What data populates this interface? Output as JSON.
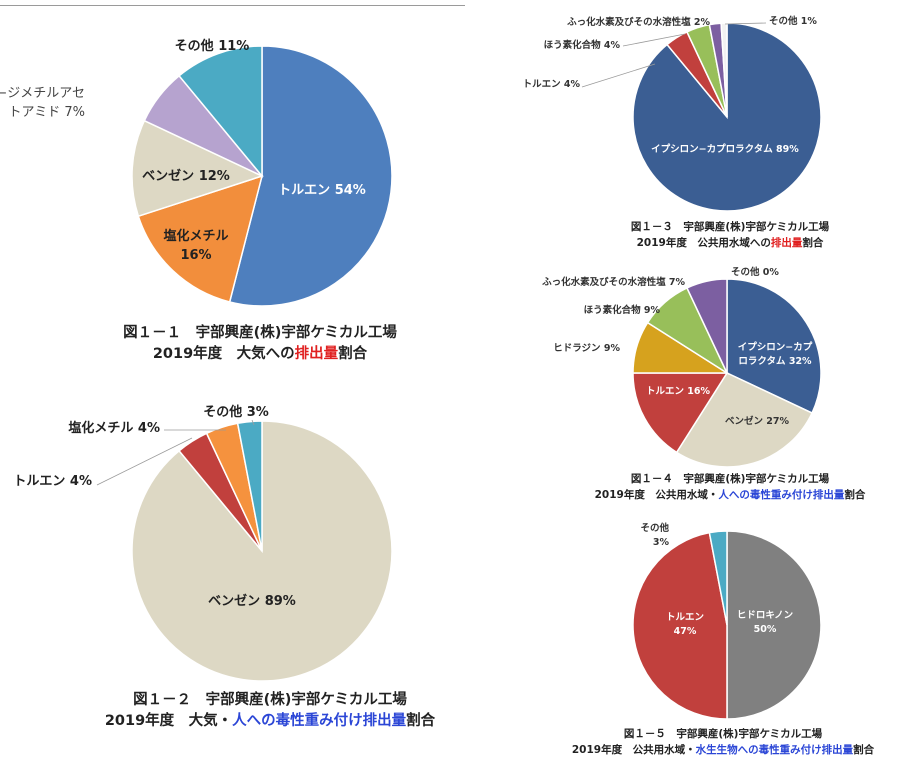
{
  "colors": {
    "toluene": "#4e7fbe",
    "methylene_chloride": "#f28e3c",
    "benzene": "#ddd8c4",
    "dmac": "#b6a3cf",
    "others": "#4baac4",
    "red": "#c1403d",
    "orange": "#f5923e",
    "teal": "#4baac4",
    "navy": "#3b5e93",
    "green": "#98bf5a",
    "purple": "#7c5fa1",
    "gold": "#d6a21e",
    "gray": "#808080",
    "white_slice": "#f2f2f2",
    "highlight_red": "#e02020",
    "highlight_blue": "#2b46d6"
  },
  "chart_data": [
    {
      "id": "fig1-1",
      "type": "pie",
      "slices": [
        {
          "label": "トルエン",
          "value": 54,
          "value_text": "54%",
          "color": "#4e7fbe"
        },
        {
          "label": "塩化メチル",
          "value": 16,
          "value_text": "16%",
          "color": "#f28e3c"
        },
        {
          "label": "ベンゼン",
          "value": 12,
          "value_text": "12%",
          "color": "#ddd8c4"
        },
        {
          "label": "N, N−ジメチルアセトアミド",
          "value": 7,
          "value_text": "7%",
          "color": "#b6a3cf"
        },
        {
          "label": "その他",
          "value": 11,
          "value_text": "11%",
          "color": "#4baac4"
        }
      ],
      "caption": {
        "line1": "図１－１　宇部興産(株)宇部ケミカル工場",
        "line2_pre": "2019年度　大気への",
        "line2_hl": "排出量",
        "line2_post": "割合"
      }
    },
    {
      "id": "fig1-2",
      "type": "pie",
      "slices": [
        {
          "label": "ベンゼン",
          "value": 89,
          "value_text": "89%",
          "color": "#ddd8c4"
        },
        {
          "label": "トルエン",
          "value": 4,
          "value_text": "4%",
          "color": "#c1403d"
        },
        {
          "label": "塩化メチル",
          "value": 4,
          "value_text": "4%",
          "color": "#f5923e"
        },
        {
          "label": "その他",
          "value": 3,
          "value_text": "3%",
          "color": "#4baac4"
        }
      ],
      "caption": {
        "line1": "図１－２　宇部興産(株)宇部ケミカル工場",
        "line2_pre": "2019年度　大気・",
        "line2_hl": "人への毒性重み付け排出量",
        "line2_post": "割合"
      }
    },
    {
      "id": "fig1-3",
      "type": "pie",
      "slices": [
        {
          "label": "イプシロン−カプロラクタム",
          "value": 89,
          "value_text": "89%",
          "color": "#3b5e93"
        },
        {
          "label": "トルエン",
          "value": 4,
          "value_text": "4%",
          "color": "#c1403d"
        },
        {
          "label": "ほう素化合物",
          "value": 4,
          "value_text": "4%",
          "color": "#98bf5a"
        },
        {
          "label": "ふっ化水素及びその水溶性塩",
          "value": 2,
          "value_text": "2%",
          "color": "#7c5fa1"
        },
        {
          "label": "その他",
          "value": 1,
          "value_text": "1%",
          "color": "#f2f2f2"
        }
      ],
      "caption": {
        "line1": "図１－３　宇部興産(株)宇部ケミカル工場",
        "line2_pre": "2019年度　公共用水域への",
        "line2_hl": "排出量",
        "line2_post": "割合"
      }
    },
    {
      "id": "fig1-4",
      "type": "pie",
      "slices": [
        {
          "label": "イプシロン−カプロラクタム",
          "value": 32,
          "value_text": "32%",
          "color": "#3b5e93"
        },
        {
          "label": "ベンゼン",
          "value": 27,
          "value_text": "27%",
          "color": "#ddd8c4"
        },
        {
          "label": "トルエン",
          "value": 16,
          "value_text": "16%",
          "color": "#c1403d"
        },
        {
          "label": "ヒドラジン",
          "value": 9,
          "value_text": "9%",
          "color": "#d6a21e"
        },
        {
          "label": "ほう素化合物",
          "value": 9,
          "value_text": "9%",
          "color": "#98bf5a"
        },
        {
          "label": "ふっ化水素及びその水溶性塩",
          "value": 7,
          "value_text": "7%",
          "color": "#7c5fa1"
        },
        {
          "label": "その他",
          "value": 0,
          "value_text": "0%",
          "color": "#f2f2f2"
        }
      ],
      "caption": {
        "line1": "図１－４　宇部興産(株)宇部ケミカル工場",
        "line2_pre": "2019年度　公共用水域・",
        "line2_hl": "人への毒性重み付け排出量",
        "line2_post": "割合"
      }
    },
    {
      "id": "fig1-5",
      "type": "pie",
      "slices": [
        {
          "label": "ヒドロキノン",
          "value": 50,
          "value_text": "50%",
          "color": "#808080"
        },
        {
          "label": "トルエン",
          "value": 47,
          "value_text": "47%",
          "color": "#c1403d"
        },
        {
          "label": "その他",
          "value": 3,
          "value_text": "3%",
          "color": "#4baac4"
        }
      ],
      "caption": {
        "line1": "図１－５　宇部興産(株)宇部ケミカル工場",
        "line2_pre": "2019年度　公共用水域・",
        "line2_hl": "水生生物への毒性重み付け排出量",
        "line2_post": "割合"
      }
    }
  ]
}
